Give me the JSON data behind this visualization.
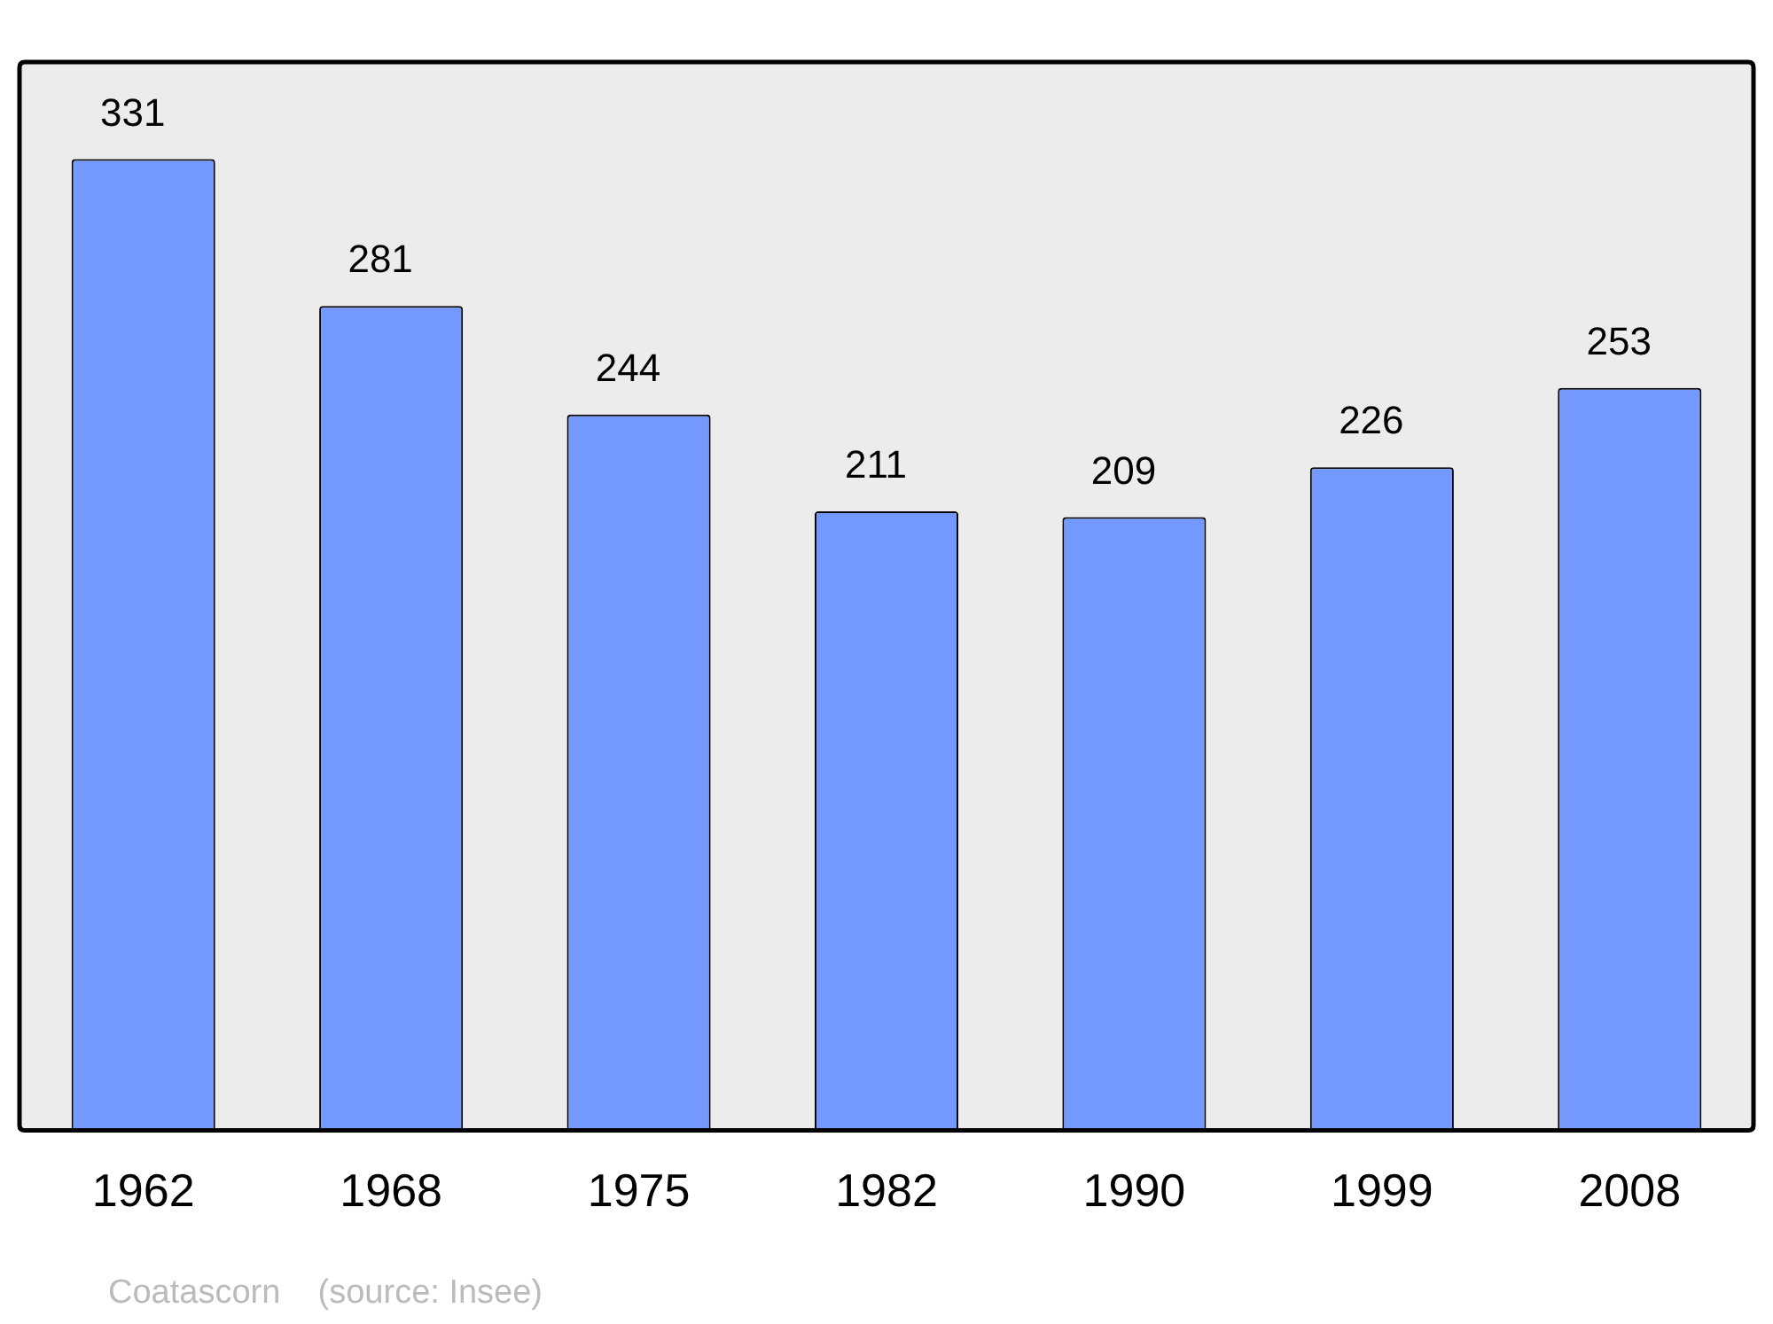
{
  "chart_data": {
    "type": "bar",
    "categories": [
      "1962",
      "1968",
      "1975",
      "1982",
      "1990",
      "1999",
      "2008"
    ],
    "values": [
      331,
      281,
      244,
      211,
      209,
      226,
      253
    ],
    "color": "#7399ff",
    "data_labels": true,
    "grid": false,
    "legend": false,
    "annotations": [
      "Coatascorn    (source: Insee)"
    ]
  }
}
